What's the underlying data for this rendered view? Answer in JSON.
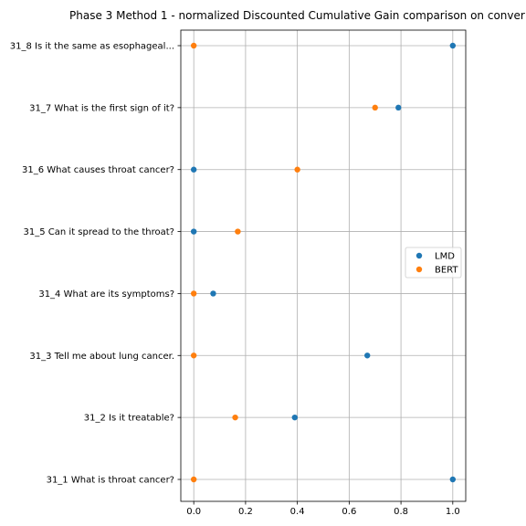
{
  "chart_data": {
    "type": "scatter",
    "title": "Phase 3 Method 1 - normalized Discounted Cumulative Gain comparison on conver",
    "xlabel": "",
    "ylabel": "",
    "xlim": [
      -0.05,
      1.05
    ],
    "x_ticks": [
      0.0,
      0.2,
      0.4,
      0.6,
      0.8,
      1.0
    ],
    "x_tick_labels": [
      "0.0",
      "0.2",
      "0.4",
      "0.6",
      "0.8",
      "1.0"
    ],
    "categories": [
      "31_1 What is throat cancer?",
      "31_2 Is it treatable?",
      "31_3 Tell me about lung cancer.",
      "31_4 What are its symptoms?",
      "31_5 Can it spread to the throat?",
      "31_6 What causes throat cancer?",
      "31_7 What is the first sign of it?",
      "31_8 Is it the same as esophageal..."
    ],
    "grid": true,
    "legend_position": "center-right",
    "series": [
      {
        "name": "LMD",
        "color": "#1f77b4",
        "values": [
          1.0,
          0.39,
          0.67,
          0.075,
          0.0,
          0.0,
          0.79,
          1.0
        ]
      },
      {
        "name": "BERT",
        "color": "#ff7f0e",
        "values": [
          0.0,
          0.16,
          0.0,
          0.0,
          0.17,
          0.4,
          0.7,
          0.0
        ]
      }
    ]
  }
}
